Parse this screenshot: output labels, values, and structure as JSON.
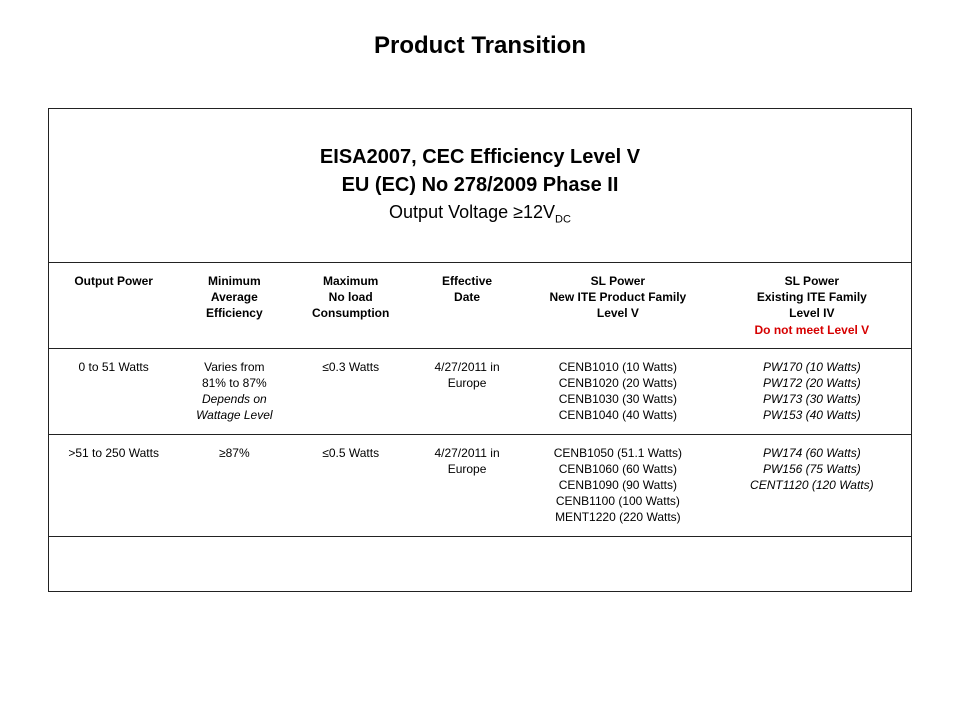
{
  "title": "Product Transition",
  "header": {
    "line1": "EISA2007, CEC Efficiency Level V",
    "line2": "EU (EC) No 278/2009 Phase II",
    "line3_prefix": "Output Voltage ≥12V",
    "line3_sub": "DC"
  },
  "columns": {
    "c1": "Output Power",
    "c2_l1": "Minimum",
    "c2_l2": "Average",
    "c2_l3": "Efficiency",
    "c3_l1": "Maximum",
    "c3_l2": "No load",
    "c3_l3": "Consumption",
    "c4_l1": "Effective",
    "c4_l2": "Date",
    "c5_l1": "SL Power",
    "c5_l2": "New ITE Product Family",
    "c5_l3": "Level V",
    "c6_l1": "SL Power",
    "c6_l2": "Existing ITE Family",
    "c6_l3": "Level IV",
    "c6_l4": "Do not meet Level V"
  },
  "rows": [
    {
      "power": "0 to 51 Watts",
      "eff_l1": "Varies from",
      "eff_l2": "81% to 87%",
      "eff_l3": "Depends on",
      "eff_l4": "Wattage Level",
      "noload": "≤0.3 Watts",
      "date_l1": "4/27/2011 in",
      "date_l2": "Europe",
      "newfam": [
        "CENB1010 (10 Watts)",
        "CENB1020 (20 Watts)",
        "CENB1030 (30 Watts)",
        "CENB1040 (40 Watts)"
      ],
      "oldfam": [
        "PW170 (10 Watts)",
        "PW172 (20 Watts)",
        "PW173 (30 Watts)",
        "PW153 (40 Watts)"
      ]
    },
    {
      "power": ">51 to 250 Watts",
      "eff_l1": "≥87%",
      "eff_l2": "",
      "eff_l3": "",
      "eff_l4": "",
      "noload": "≤0.5 Watts",
      "date_l1": "4/27/2011 in",
      "date_l2": "Europe",
      "newfam": [
        "CENB1050 (51.1 Watts)",
        "CENB1060 (60 Watts)",
        "CENB1090 (90 Watts)",
        "CENB1100 (100 Watts)",
        "MENT1220 (220 Watts)"
      ],
      "oldfam": [
        "PW174 (60 Watts)",
        "PW156 (75 Watts)",
        "CENT1120 (120 Watts)"
      ]
    }
  ],
  "style": {
    "page_bg": "#ffffff",
    "text_color": "#000000",
    "border_color": "#222222",
    "red": "#d60000",
    "title_fontsize": 24,
    "header_fontsize": 20,
    "subheader_fontsize": 18,
    "cell_fontsize": 12
  }
}
